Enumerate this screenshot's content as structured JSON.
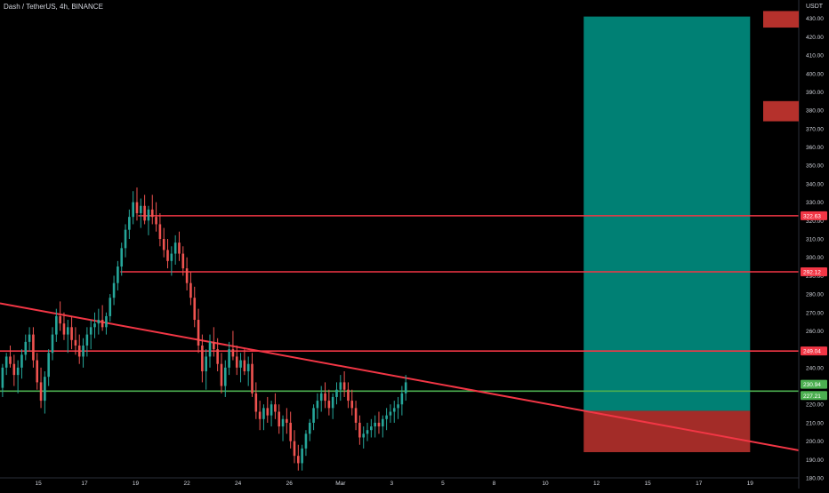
{
  "chart_data": {
    "type": "candlestick",
    "title": "Dash / TetherUS, 4h, BINANCE",
    "y_axis_unit": "USDT",
    "ylim": [
      180,
      440
    ],
    "y_ticks": [
      430,
      420,
      410,
      400,
      390,
      380,
      370,
      360,
      350,
      340,
      330,
      320,
      310,
      300,
      290,
      280,
      270,
      260,
      250,
      240,
      230,
      220,
      210,
      200,
      190,
      180
    ],
    "x_ticks": [
      "15",
      "17",
      "19",
      "22",
      "24",
      "26",
      "Mar",
      "3",
      "5",
      "8",
      "10",
      "12",
      "15",
      "17",
      "19"
    ],
    "x_tick_positions": [
      13.7,
      15.5,
      17.5,
      19.5,
      21.5,
      23.5,
      25.5,
      27.5,
      29.5,
      31.5,
      33.5,
      35.5,
      37.5,
      39.5,
      41.5
    ],
    "x_range": [
      12.2,
      43.4
    ],
    "horizontal_levels": [
      {
        "value": 322.63,
        "label": "322.63",
        "color": "#f23645",
        "x_start": 17.6
      },
      {
        "value": 292.12,
        "label": "292.12",
        "color": "#f23645",
        "x_start": 16.9
      },
      {
        "value": 249.04,
        "label": "249.04",
        "color": "#f23645",
        "x_start": 12.2
      },
      {
        "value": 227.21,
        "label": "227.21",
        "color": "#4caf50",
        "x_start": 12.2
      }
    ],
    "trendline": {
      "x1": 12.2,
      "y1": 275,
      "x2": 43.4,
      "y2": 195,
      "color": "#f23645"
    },
    "price_labels": [
      {
        "value": 230.94,
        "label": "230.94",
        "color": "#4caf50"
      },
      {
        "value": 227.21,
        "label": "227.21",
        "color": "#4caf50"
      }
    ],
    "position_box": {
      "x_start": 35.0,
      "x_end": 41.5,
      "entry": 216.5,
      "target": 431,
      "stop": 194,
      "profit_color": "#009688",
      "loss_color": "#b5312c"
    },
    "axis_markers": [
      {
        "from": 425,
        "to": 434,
        "color": "#b5312c"
      },
      {
        "from": 374,
        "to": 385,
        "color": "#b5312c"
      }
    ],
    "up_color": "#26a69a",
    "down_color": "#ef5350",
    "candles": [
      [
        12.3,
        229,
        242,
        224,
        240
      ],
      [
        12.45,
        240,
        248,
        236,
        246
      ],
      [
        12.6,
        246,
        252,
        240,
        242
      ],
      [
        12.75,
        242,
        247,
        230,
        236
      ],
      [
        12.9,
        236,
        244,
        226,
        240
      ],
      [
        13.05,
        240,
        250,
        234,
        247
      ],
      [
        13.2,
        247,
        258,
        244,
        254
      ],
      [
        13.35,
        254,
        262,
        249,
        258
      ],
      [
        13.5,
        258,
        262,
        240,
        244
      ],
      [
        13.65,
        244,
        248,
        228,
        232
      ],
      [
        13.8,
        232,
        240,
        218,
        222
      ],
      [
        13.95,
        222,
        238,
        215,
        235
      ],
      [
        14.1,
        235,
        250,
        230,
        248
      ],
      [
        14.25,
        248,
        262,
        244,
        258
      ],
      [
        14.4,
        258,
        272,
        254,
        268
      ],
      [
        14.55,
        268,
        276,
        260,
        264
      ],
      [
        14.7,
        264,
        270,
        255,
        258
      ],
      [
        14.85,
        258,
        266,
        248,
        262
      ],
      [
        15.0,
        262,
        268,
        250,
        255
      ],
      [
        15.15,
        255,
        262,
        247,
        252
      ],
      [
        15.3,
        252,
        258,
        242,
        246
      ],
      [
        15.45,
        246,
        256,
        240,
        252
      ],
      [
        15.6,
        252,
        262,
        246,
        258
      ],
      [
        15.75,
        258,
        266,
        250,
        262
      ],
      [
        15.9,
        262,
        270,
        256,
        264
      ],
      [
        16.05,
        264,
        272,
        258,
        266
      ],
      [
        16.2,
        266,
        274,
        260,
        262
      ],
      [
        16.35,
        262,
        270,
        258,
        268
      ],
      [
        16.5,
        268,
        280,
        265,
        278
      ],
      [
        16.65,
        278,
        290,
        274,
        286
      ],
      [
        16.8,
        286,
        298,
        282,
        295
      ],
      [
        16.95,
        295,
        308,
        290,
        305
      ],
      [
        17.1,
        305,
        318,
        300,
        315
      ],
      [
        17.25,
        315,
        326,
        310,
        322
      ],
      [
        17.4,
        322,
        336,
        318,
        330
      ],
      [
        17.55,
        330,
        338,
        320,
        324
      ],
      [
        17.7,
        324,
        332,
        316,
        328
      ],
      [
        17.85,
        328,
        334,
        318,
        320
      ],
      [
        18.0,
        320,
        328,
        312,
        326
      ],
      [
        18.15,
        326,
        334,
        318,
        322
      ],
      [
        18.3,
        322,
        330,
        314,
        318
      ],
      [
        18.45,
        318,
        324,
        306,
        310
      ],
      [
        18.6,
        310,
        316,
        300,
        304
      ],
      [
        18.75,
        304,
        310,
        294,
        298
      ],
      [
        18.9,
        298,
        306,
        290,
        302
      ],
      [
        19.05,
        302,
        312,
        296,
        308
      ],
      [
        19.2,
        308,
        314,
        298,
        302
      ],
      [
        19.35,
        302,
        306,
        290,
        294
      ],
      [
        19.5,
        294,
        300,
        282,
        286
      ],
      [
        19.65,
        286,
        292,
        274,
        278
      ],
      [
        19.8,
        278,
        284,
        262,
        266
      ],
      [
        19.95,
        266,
        272,
        248,
        252
      ],
      [
        20.1,
        252,
        258,
        232,
        238
      ],
      [
        20.25,
        238,
        250,
        228,
        246
      ],
      [
        20.4,
        246,
        258,
        240,
        254
      ],
      [
        20.55,
        254,
        262,
        246,
        250
      ],
      [
        20.7,
        250,
        256,
        238,
        242
      ],
      [
        20.85,
        242,
        248,
        226,
        230
      ],
      [
        21.0,
        230,
        244,
        224,
        240
      ],
      [
        21.15,
        240,
        254,
        236,
        250
      ],
      [
        21.3,
        250,
        260,
        244,
        246
      ],
      [
        21.45,
        246,
        252,
        236,
        240
      ],
      [
        21.6,
        240,
        248,
        232,
        244
      ],
      [
        21.75,
        244,
        250,
        236,
        238
      ],
      [
        21.9,
        238,
        246,
        230,
        242
      ],
      [
        22.05,
        242,
        248,
        224,
        226
      ],
      [
        22.2,
        226,
        232,
        212,
        216
      ],
      [
        22.35,
        216,
        222,
        206,
        212
      ],
      [
        22.5,
        212,
        220,
        206,
        218
      ],
      [
        22.65,
        218,
        224,
        210,
        214
      ],
      [
        22.8,
        214,
        222,
        208,
        220
      ],
      [
        22.95,
        220,
        226,
        212,
        216
      ],
      [
        23.1,
        216,
        220,
        204,
        208
      ],
      [
        23.25,
        208,
        214,
        200,
        212
      ],
      [
        23.4,
        212,
        218,
        204,
        210
      ],
      [
        23.55,
        210,
        216,
        196,
        200
      ],
      [
        23.7,
        200,
        206,
        188,
        192
      ],
      [
        23.85,
        192,
        198,
        184,
        188
      ],
      [
        24.0,
        188,
        198,
        184,
        196
      ],
      [
        24.15,
        196,
        206,
        192,
        204
      ],
      [
        24.3,
        204,
        212,
        200,
        210
      ],
      [
        24.45,
        210,
        220,
        206,
        218
      ],
      [
        24.6,
        218,
        226,
        212,
        222
      ],
      [
        24.75,
        222,
        230,
        216,
        226
      ],
      [
        24.9,
        226,
        232,
        218,
        222
      ],
      [
        25.05,
        222,
        228,
        214,
        218
      ],
      [
        25.2,
        218,
        226,
        212,
        224
      ],
      [
        25.35,
        224,
        232,
        220,
        228
      ],
      [
        25.5,
        228,
        236,
        222,
        232
      ],
      [
        25.65,
        232,
        238,
        224,
        228
      ],
      [
        25.8,
        228,
        232,
        218,
        222
      ],
      [
        25.95,
        222,
        228,
        214,
        218
      ],
      [
        26.1,
        218,
        222,
        206,
        210
      ],
      [
        26.25,
        210,
        214,
        198,
        202
      ],
      [
        26.4,
        202,
        208,
        196,
        204
      ],
      [
        26.55,
        204,
        210,
        200,
        206
      ],
      [
        26.7,
        206,
        212,
        202,
        208
      ],
      [
        26.85,
        208,
        214,
        202,
        210
      ],
      [
        27.0,
        210,
        216,
        204,
        208
      ],
      [
        27.15,
        208,
        214,
        202,
        212
      ],
      [
        27.3,
        212,
        218,
        206,
        214
      ],
      [
        27.45,
        214,
        220,
        210,
        216
      ],
      [
        27.6,
        216,
        222,
        210,
        218
      ],
      [
        27.75,
        218,
        224,
        212,
        220
      ],
      [
        27.9,
        220,
        230,
        214,
        226
      ],
      [
        28.05,
        226,
        236,
        222,
        232
      ]
    ]
  }
}
